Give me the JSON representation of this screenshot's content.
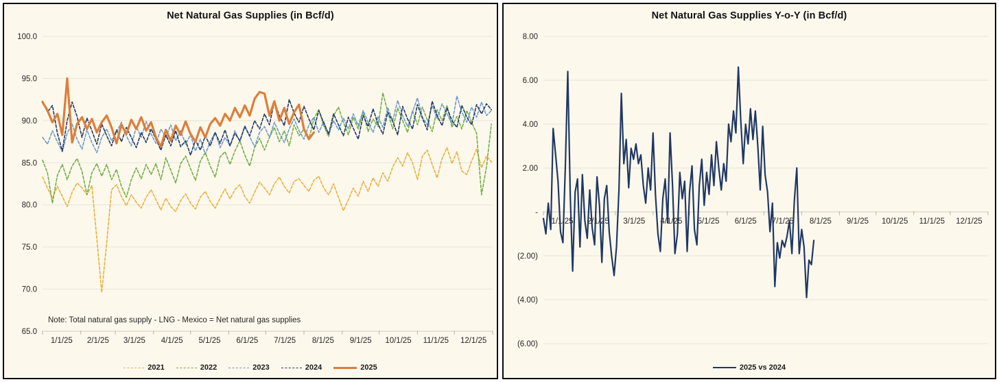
{
  "window": {
    "background": "#ffffff",
    "panel_background": "#fdf8ec",
    "panel_border": "#0a0a0a",
    "gridline_color": "#e6e4d9",
    "axis_tick_color": "#b9b7aa",
    "text_color": "#262626",
    "title_color": "#121212"
  },
  "chart_data": [
    {
      "type": "line",
      "title": "Net Natural Gas Supplies (in Bcf/d)",
      "note": "Note: Total natural gas supply - LNG - Mexico = Net natural gas supplies",
      "legend_position": "bottom",
      "grid": true,
      "x_axis": {
        "unit": "day_of_year_2025_calendar",
        "tick_labels": [
          "1/1/25",
          "2/1/25",
          "3/1/25",
          "4/1/25",
          "5/1/25",
          "6/1/25",
          "7/1/25",
          "8/1/25",
          "9/1/25",
          "10/1/25",
          "11/1/25",
          "12/1/25"
        ],
        "month_start_days": [
          1,
          32,
          60,
          91,
          121,
          152,
          182,
          213,
          244,
          274,
          305,
          335
        ]
      },
      "y_axis": {
        "min": 65,
        "max": 100,
        "step": 5,
        "tick_labels": [
          "100.0",
          "95.0",
          "90.0",
          "85.0",
          "80.0",
          "75.0",
          "70.0",
          "65.0"
        ]
      },
      "series": [
        {
          "name": "2021",
          "color": "#e9b03d",
          "dash": "4 2.5",
          "width": 1.6,
          "start_day": 1,
          "day_step": 4,
          "values": [
            83.3,
            82.0,
            80.8,
            82.2,
            81.0,
            79.8,
            81.5,
            82.6,
            82.0,
            81.2,
            82.3,
            76.0,
            69.6,
            75.5,
            81.8,
            82.4,
            81.0,
            79.9,
            81.2,
            80.3,
            79.6,
            80.9,
            81.8,
            80.6,
            79.4,
            80.8,
            79.8,
            79.2,
            80.5,
            81.3,
            80.2,
            79.5,
            80.9,
            81.6,
            80.4,
            79.6,
            80.8,
            81.9,
            80.7,
            81.8,
            82.4,
            81.0,
            80.2,
            81.5,
            82.7,
            82.0,
            81.2,
            82.5,
            83.3,
            82.2,
            81.4,
            82.8,
            83.1,
            82.3,
            81.6,
            82.9,
            83.4,
            82.0,
            81.2,
            82.5,
            80.9,
            79.3,
            80.6,
            82.0,
            81.0,
            82.8,
            81.6,
            83.2,
            82.2,
            83.8,
            82.8,
            84.5,
            85.6,
            84.6,
            86.2,
            85.0,
            83.0,
            85.8,
            86.5,
            84.8,
            83.2,
            85.5,
            86.8,
            84.9,
            86.3,
            84.0,
            83.6,
            85.2,
            86.6,
            84.4,
            85.8,
            85.1
          ]
        },
        {
          "name": "2022",
          "color": "#70ad47",
          "dash": "4 2.5",
          "width": 1.6,
          "start_day": 1,
          "day_step": 4,
          "values": [
            85.3,
            83.8,
            80.2,
            83.5,
            84.8,
            83.0,
            84.6,
            85.5,
            84.0,
            81.2,
            83.8,
            84.9,
            83.4,
            84.8,
            83.0,
            84.2,
            82.2,
            80.9,
            83.0,
            84.4,
            83.1,
            84.8,
            83.6,
            84.9,
            83.0,
            85.6,
            84.1,
            82.6,
            84.9,
            85.8,
            84.3,
            82.9,
            85.2,
            86.2,
            84.6,
            83.3,
            85.7,
            86.3,
            84.8,
            86.4,
            87.6,
            85.9,
            84.6,
            86.8,
            87.9,
            86.5,
            88.0,
            89.2,
            87.5,
            88.8,
            87.0,
            89.5,
            88.2,
            89.0,
            87.8,
            90.2,
            91.3,
            89.4,
            88.1,
            90.6,
            91.6,
            89.8,
            88.3,
            90.4,
            89.0,
            91.0,
            88.7,
            90.2,
            89.3,
            93.3,
            91.0,
            89.0,
            91.5,
            90.0,
            88.6,
            91.2,
            89.5,
            91.6,
            90.1,
            88.7,
            91.3,
            90.0,
            91.8,
            89.2,
            90.5,
            89.0,
            91.2,
            89.8,
            88.5,
            81.2,
            84.5,
            89.6
          ]
        },
        {
          "name": "2023",
          "color": "#699ad0",
          "dash": "4 2.5",
          "width": 1.6,
          "start_day": 1,
          "day_step": 4,
          "values": [
            88.0,
            87.2,
            88.8,
            87.5,
            86.3,
            88.5,
            89.6,
            87.8,
            86.6,
            88.9,
            87.4,
            86.2,
            88.0,
            89.0,
            87.6,
            88.6,
            89.8,
            88.2,
            87.0,
            89.3,
            88.0,
            89.9,
            88.4,
            87.3,
            89.0,
            88.0,
            89.5,
            87.6,
            88.8,
            87.2,
            88.3,
            86.4,
            87.8,
            86.0,
            87.5,
            88.6,
            86.8,
            88.0,
            87.0,
            88.8,
            87.5,
            89.4,
            88.1,
            86.9,
            88.6,
            89.3,
            88.0,
            89.8,
            88.5,
            87.4,
            89.0,
            90.2,
            88.8,
            87.8,
            89.5,
            90.4,
            88.6,
            89.9,
            88.3,
            90.0,
            88.9,
            90.3,
            89.0,
            90.8,
            89.4,
            91.2,
            89.8,
            88.6,
            90.5,
            89.2,
            91.5,
            90.0,
            92.4,
            90.6,
            89.3,
            91.0,
            92.7,
            90.4,
            89.5,
            91.8,
            90.2,
            92.0,
            90.8,
            89.6,
            92.9,
            91.0,
            89.8,
            91.6,
            90.4,
            92.2,
            90.6,
            91.2
          ]
        },
        {
          "name": "2024",
          "color": "#1f3864",
          "dash": "4 2.5",
          "width": 1.6,
          "start_day": 1,
          "day_step": 4,
          "values": [
            92.3,
            91.0,
            91.8,
            88.5,
            86.4,
            90.0,
            92.2,
            90.5,
            88.0,
            90.3,
            88.8,
            87.2,
            89.6,
            88.2,
            87.0,
            88.9,
            87.5,
            89.2,
            88.0,
            86.8,
            88.6,
            87.4,
            89.0,
            87.8,
            86.5,
            88.3,
            87.0,
            88.8,
            86.9,
            87.6,
            85.9,
            87.7,
            86.5,
            88.2,
            87.0,
            88.6,
            87.3,
            88.9,
            87.0,
            88.5,
            87.6,
            89.3,
            88.2,
            90.0,
            89.0,
            90.8,
            89.5,
            92.3,
            90.6,
            89.4,
            92.5,
            90.9,
            89.8,
            91.7,
            90.2,
            88.9,
            91.2,
            89.7,
            88.4,
            90.8,
            89.5,
            88.2,
            90.4,
            89.1,
            87.8,
            90.6,
            89.3,
            91.4,
            89.6,
            88.4,
            91.0,
            89.9,
            88.3,
            91.7,
            90.2,
            89.0,
            91.9,
            90.3,
            88.9,
            92.3,
            90.6,
            89.4,
            91.5,
            90.0,
            89.2,
            91.8,
            90.4,
            89.5,
            91.9,
            90.8,
            92.0,
            91.3
          ]
        },
        {
          "name": "2025",
          "color": "#dd7e3b",
          "dash": null,
          "width": 3.2,
          "start_day": 1,
          "day_step": 4,
          "values": [
            92.2,
            91.2,
            89.8,
            90.8,
            88.3,
            95.0,
            87.4,
            89.6,
            90.4,
            89.0,
            90.2,
            88.6,
            89.8,
            90.6,
            89.2,
            87.3,
            89.5,
            88.4,
            90.1,
            89.0,
            90.4,
            88.8,
            89.8,
            88.0,
            86.9,
            88.9,
            87.6,
            89.4,
            88.3,
            89.9,
            88.4,
            87.5,
            89.2,
            88.0,
            89.6,
            90.3,
            89.4,
            90.8,
            90.0,
            91.5,
            90.4,
            91.8,
            90.6,
            92.6,
            93.4,
            93.2,
            90.6,
            92.3,
            90.0,
            91.5,
            89.6,
            91.0,
            91.9,
            89.0,
            87.8,
            88.6
          ]
        }
      ]
    },
    {
      "type": "line",
      "title": "Net Natural Gas Supplies Y-o-Y (in Bcf/d)",
      "legend_position": "bottom",
      "grid": true,
      "x_axis": {
        "unit": "day_of_year_2025_calendar",
        "tick_labels": [
          "1/1/25",
          "2/1/25",
          "3/1/25",
          "4/1/25",
          "5/1/25",
          "6/1/25",
          "7/1/25",
          "8/1/25",
          "9/1/25",
          "10/1/25",
          "11/1/25",
          "12/1/25"
        ],
        "month_start_days": [
          1,
          32,
          60,
          91,
          121,
          152,
          182,
          213,
          244,
          274,
          305,
          335
        ]
      },
      "y_axis": {
        "min": -6,
        "max": 8,
        "step": 2,
        "tick_labels": [
          "8.00",
          "6.00",
          "4.00",
          "2.00",
          "-",
          "(2.00)",
          "(4.00)",
          "(6.00)"
        ]
      },
      "series": [
        {
          "name": "2025 vs 2024",
          "color": "#1f3864",
          "dash": null,
          "width": 2.2,
          "start_day": 1,
          "day_step": 2,
          "values": [
            -0.3,
            -1.0,
            0.4,
            -0.8,
            3.8,
            2.6,
            1.4,
            -0.9,
            -1.4,
            2.1,
            6.4,
            0.8,
            -2.7,
            0.9,
            1.5,
            -1.6,
            1.7,
            -0.4,
            -1.2,
            1.0,
            -0.7,
            -1.5,
            1.6,
            0.3,
            -2.3,
            0.6,
            1.2,
            -0.9,
            -2.0,
            -2.9,
            -1.6,
            1.0,
            5.4,
            2.2,
            3.3,
            1.1,
            2.9,
            2.4,
            3.1,
            2.2,
            2.6,
            1.2,
            0.4,
            2.0,
            1.0,
            3.6,
            0.8,
            -1.0,
            -1.8,
            0.6,
            1.5,
            -0.5,
            3.6,
            1.2,
            -1.9,
            -1.0,
            1.8,
            0.6,
            1.4,
            -1.8,
            0.9,
            2.1,
            -0.8,
            -1.5,
            1.2,
            2.4,
            0.3,
            1.8,
            0.8,
            2.6,
            1.2,
            3.2,
            2.0,
            1.0,
            2.2,
            1.4,
            4.0,
            3.2,
            4.6,
            3.6,
            6.6,
            4.2,
            2.2,
            4.0,
            3.1,
            4.7,
            3.3,
            4.6,
            3.0,
            1.0,
            3.9,
            1.7,
            0.9,
            -0.9,
            0.4,
            -3.4,
            -1.4,
            -2.1,
            -1.3,
            -1.6,
            -1.1,
            -0.4,
            -1.9,
            0.5,
            2.0,
            -1.9,
            -0.8,
            -1.6,
            -3.9,
            -2.2,
            -2.4,
            -1.3
          ]
        }
      ]
    }
  ]
}
